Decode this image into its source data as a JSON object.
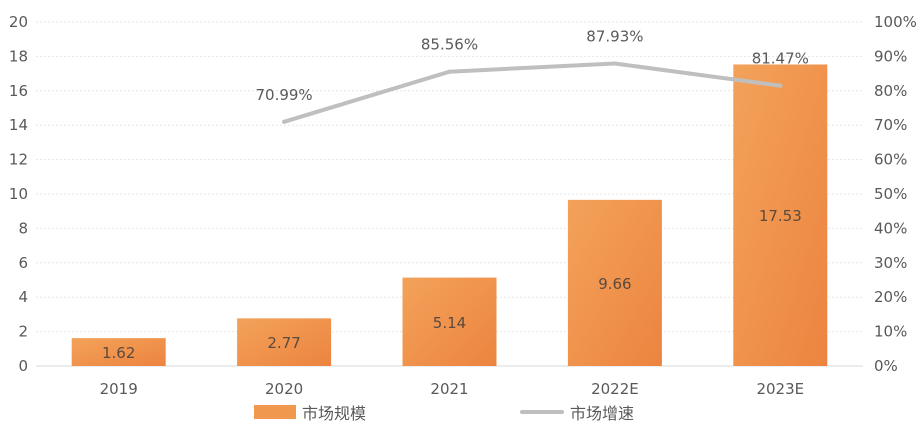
{
  "chart_data": {
    "type": "bar",
    "categories": [
      "2019",
      "2020",
      "2021",
      "2022E",
      "2023E"
    ],
    "series": [
      {
        "name": "市场规模",
        "type": "bar",
        "axis": "left",
        "values": [
          1.62,
          2.77,
          5.14,
          9.66,
          17.53
        ],
        "labels": [
          "1.62",
          "2.77",
          "5.14",
          "9.66",
          "17.53"
        ],
        "color": "#F0994E"
      },
      {
        "name": "市场增速",
        "type": "line",
        "axis": "right",
        "values": [
          null,
          70.99,
          85.56,
          87.93,
          81.47
        ],
        "labels": [
          "",
          "70.99%",
          "85.56%",
          "87.93%",
          "81.47%"
        ],
        "color": "#BFBFBF"
      }
    ],
    "y_left": {
      "min": 0,
      "max": 20,
      "step": 2,
      "ticks": [
        "0",
        "2",
        "4",
        "6",
        "8",
        "10",
        "12",
        "14",
        "16",
        "18",
        "20"
      ]
    },
    "y_right": {
      "min": 0,
      "max": 100,
      "step": 10,
      "ticks": [
        "0%",
        "10%",
        "20%",
        "30%",
        "40%",
        "50%",
        "60%",
        "70%",
        "80%",
        "90%",
        "100%"
      ]
    },
    "grid": true,
    "legend_position": "bottom"
  },
  "legend": {
    "bar_label": "市场规模",
    "line_label": "市场增速"
  }
}
